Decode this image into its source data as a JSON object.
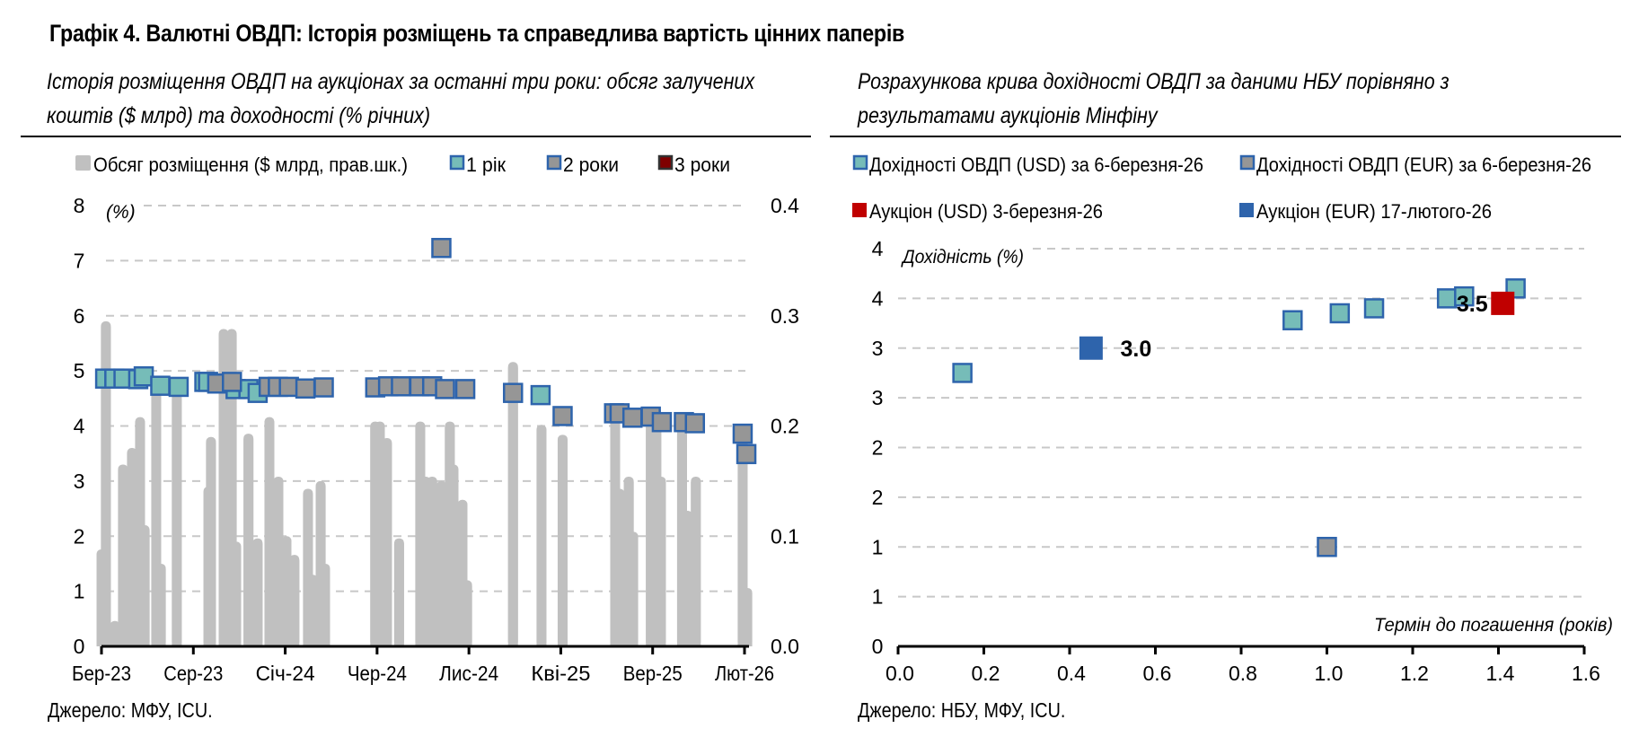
{
  "page": {
    "title": "Графік 4. Валютні ОВДП: Історія розміщень та справедлива вартість цінних паперів",
    "left_subtitle_line1": "Історія розміщення ОВДП на аукціонах за останні три роки: обсяг залучених",
    "left_subtitle_line2": "коштів ($ млрд) та доходності (% річних)",
    "right_subtitle_line1": "Розрахункова крива дохідності ОВДП за даними НБУ порівняно з",
    "right_subtitle_line2": "результатами аукціонів Мінфіну",
    "left_source": "Джерело: МФУ, ICU.",
    "right_source": "Джерело: НБУ, МФУ, ICU."
  },
  "colors": {
    "bar": "#c0c0c0",
    "one_year": "#76bcb8",
    "two_year": "#969696",
    "three_year": "#7f0000",
    "marker_border": "#2e64ac",
    "auction_usd": "#c00000",
    "auction_eur": "#2e64ac",
    "grid": "#c8c8c8"
  },
  "chart_data": [
    {
      "type": "bar+scatter",
      "title": "Історія розміщення ОВДП на аукціонах за останні три роки",
      "x_unit": "months since Mar-2023",
      "xlim": [
        0,
        35.5
      ],
      "x_ticks": [
        {
          "value": 0,
          "label": "Бер-23"
        },
        {
          "value": 5,
          "label": "Сер-23"
        },
        {
          "value": 10,
          "label": "Січ-24"
        },
        {
          "value": 15,
          "label": "Чер-24"
        },
        {
          "value": 20,
          "label": "Лис-24"
        },
        {
          "value": 25,
          "label": "Кві-25"
        },
        {
          "value": 30,
          "label": "Вер-25"
        },
        {
          "value": 35,
          "label": "Лют-26"
        }
      ],
      "ylim_left": [
        0,
        8
      ],
      "y_ticks_left": [
        "0",
        "1",
        "2",
        "3",
        "4",
        "5",
        "6",
        "7",
        "8"
      ],
      "ylabel_left": "(%)",
      "ylim_right": [
        0,
        0.4
      ],
      "y_ticks_right": [
        "0.0",
        "0.1",
        "0.2",
        "0.3",
        "0.4"
      ],
      "legend": [
        {
          "name": "Обсяг розміщення ($ млрд, прав.шк.)",
          "key": "bar"
        },
        {
          "name": "1 рік",
          "key": "one_year"
        },
        {
          "name": "2 роки",
          "key": "two_year"
        },
        {
          "name": "3 роки",
          "key": "three_year"
        }
      ],
      "volume_series": {
        "name": "Обсяг розміщення ($ млрд, прав.шк.)",
        "x": [
          0.0,
          0.24,
          0.73,
          1.17,
          1.42,
          1.66,
          2.1,
          2.35,
          2.98,
          3.23,
          4.1,
          5.82,
          5.96,
          6.65,
          7.09,
          7.33,
          8.0,
          8.5,
          9.14,
          9.63,
          10.07,
          10.5,
          11.24,
          11.49,
          11.93,
          12.17,
          14.9,
          15.15,
          15.54,
          16.2,
          17.35,
          17.64,
          18.0,
          18.5,
          18.96,
          19.16,
          19.65,
          19.9,
          22.4,
          23.95,
          25.1,
          27.96,
          28.2,
          28.7,
          28.94,
          29.9,
          30.2,
          30.45,
          31.6,
          31.9,
          32.35,
          34.9,
          35.15
        ],
        "values": [
          0.088,
          0.295,
          0.023,
          0.165,
          0.12,
          0.18,
          0.208,
          0.11,
          0.24,
          0.075,
          0.23,
          0.145,
          0.19,
          0.288,
          0.288,
          0.095,
          0.193,
          0.098,
          0.208,
          0.154,
          0.1,
          0.083,
          0.143,
          0.065,
          0.15,
          0.075,
          0.204,
          0.204,
          0.189,
          0.098,
          0.204,
          0.154,
          0.154,
          0.15,
          0.204,
          0.165,
          0.133,
          0.06,
          0.258,
          0.201,
          0.192,
          0.213,
          0.143,
          0.154,
          0.104,
          0.205,
          0.205,
          0.154,
          0.2,
          0.123,
          0.154,
          0.2,
          0.053
        ]
      },
      "yield_series": [
        {
          "name": "1 рік",
          "x": [
            0.2,
            0.7,
            1.2,
            2.0,
            2.3,
            3.2,
            4.2,
            5.6,
            5.8,
            7.3,
            8.0,
            8.5,
            23.9
          ],
          "values": [
            4.86,
            4.86,
            4.86,
            4.85,
            4.9,
            4.73,
            4.71,
            4.8,
            4.8,
            4.67,
            4.67,
            4.6,
            4.56
          ]
        },
        {
          "name": "2 роки",
          "x": [
            6.3,
            7.1,
            9.1,
            9.6,
            10.2,
            11.1,
            12.1,
            14.9,
            15.6,
            16.3,
            17.3,
            18.0,
            18.7,
            19.8,
            18.5,
            22.4,
            25.1,
            27.9,
            28.2,
            28.9,
            29.9,
            30.5,
            31.7,
            32.3,
            34.9,
            35.1
          ],
          "values": [
            4.77,
            4.8,
            4.71,
            4.71,
            4.71,
            4.68,
            4.7,
            4.7,
            4.72,
            4.72,
            4.72,
            4.72,
            4.67,
            4.67,
            7.23,
            4.6,
            4.18,
            4.23,
            4.23,
            4.15,
            4.17,
            4.07,
            4.07,
            4.05,
            3.86,
            3.49
          ]
        },
        {
          "name": "3 роки",
          "x": [],
          "values": []
        }
      ],
      "grid": true,
      "legend_position": "top"
    },
    {
      "type": "scatter",
      "title": "Розрахункова крива дохідності ОВДП за даними НБУ порівняно з результатами аукціонів Мінфіну",
      "xlabel": "Термін до погашення (років)",
      "ylabel": "Дохідність (%)",
      "xlim": [
        0,
        1.6
      ],
      "ylim": [
        0,
        4
      ],
      "x_ticks": [
        "0.0",
        "0.2",
        "0.4",
        "0.6",
        "0.8",
        "1.0",
        "1.2",
        "1.4",
        "1.6"
      ],
      "y_tick_values": [
        0,
        0.5,
        1,
        1.5,
        2,
        2.5,
        3,
        3.5,
        4
      ],
      "y_tick_labels": [
        "0",
        "1",
        "1",
        "2",
        "2",
        "3",
        "3",
        "4",
        "4"
      ],
      "legend": [
        {
          "name": "Дохідності ОВДП (USD) за 6-березня-26",
          "key": "usd_curve"
        },
        {
          "name": "Дохідності ОВДП (EUR) за 6-березня-26",
          "key": "eur_curve"
        },
        {
          "name": "Аукціон (USD) 3-березня-26",
          "key": "usd_auction"
        },
        {
          "name": "Аукціон (EUR) 17-лютого-26",
          "key": "eur_auction"
        }
      ],
      "series": [
        {
          "name": "Дохідності ОВДП (USD) за 6-березня-26",
          "key": "usd_curve",
          "x": [
            0.15,
            0.92,
            1.03,
            1.11,
            1.28,
            1.32,
            1.44
          ],
          "y": [
            2.75,
            3.28,
            3.35,
            3.4,
            3.5,
            3.52,
            3.6
          ]
        },
        {
          "name": "Дохідності ОВДП (EUR) за 6-березня-26",
          "key": "eur_curve",
          "x": [
            1.0
          ],
          "y": [
            1.0
          ]
        },
        {
          "name": "Аукціон (USD) 3-березня-26",
          "key": "usd_auction",
          "x": [
            1.41
          ],
          "y": [
            3.45
          ],
          "label": "3.5"
        },
        {
          "name": "Аукціон (EUR) 17-лютого-26",
          "key": "eur_auction",
          "x": [
            0.45
          ],
          "y": [
            3.0
          ],
          "label": "3.0"
        }
      ],
      "grid": true,
      "legend_position": "top"
    }
  ]
}
